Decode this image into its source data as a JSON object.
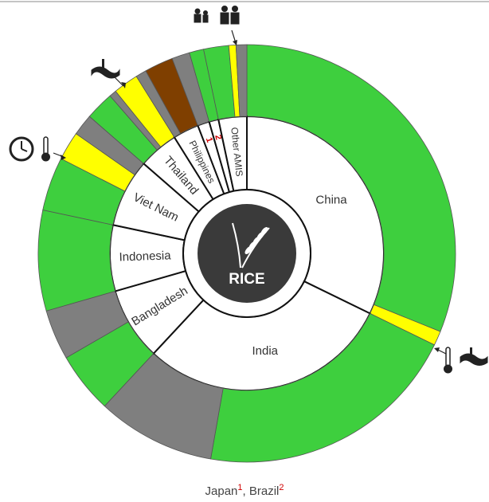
{
  "chart_data": {
    "type": "sunburst",
    "center_label": "RICE",
    "categories": [
      "China",
      "India",
      "Bangladesh",
      "Indonesia",
      "Viet Nam",
      "Thailand",
      "Philippines",
      "1",
      "2",
      "Other AMIS"
    ],
    "values": [
      116,
      107,
      31,
      28,
      29,
      17,
      11,
      5,
      4,
      12
    ],
    "outer": [
      {
        "values": [
          112,
          4
        ],
        "colors": [
          "#3ecf3e",
          "#ffff00"
        ]
      },
      {
        "values": [
          74,
          33
        ],
        "colors": [
          "#3ecf3e",
          "#7f7f7f"
        ]
      },
      {
        "values": [
          17,
          14
        ],
        "colors": [
          "#3ecf3e",
          "#7f7f7f"
        ]
      },
      {
        "values": [
          28
        ],
        "colors": [
          "#3ecf3e"
        ]
      },
      {
        "values": [
          15,
          8,
          6
        ],
        "colors": [
          "#3ecf3e",
          "#ffff00",
          "#7f7f7f"
        ]
      },
      {
        "values": [
          8,
          2,
          7
        ],
        "colors": [
          "#3ecf3e",
          "#7f7f7f",
          "#ffff00"
        ]
      },
      {
        "values": [
          3,
          8
        ],
        "colors": [
          "#7f7f7f",
          "#7f3f00"
        ]
      },
      {
        "values": [
          5
        ],
        "colors": [
          "#7f7f7f"
        ]
      },
      {
        "values": [
          4
        ],
        "colors": [
          "#3ecf3e"
        ]
      },
      {
        "values": [
          7,
          2,
          3
        ],
        "colors": [
          "#3ecf3e",
          "#ffff00",
          "#7f7f7f"
        ]
      }
    ],
    "footnote": [
      "Japan",
      "1",
      ", Brazil",
      "2"
    ]
  }
}
